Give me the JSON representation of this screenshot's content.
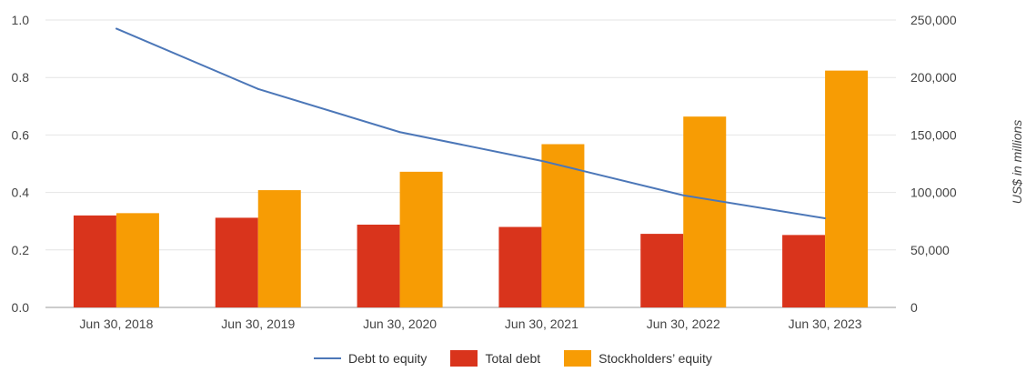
{
  "colors": {
    "line": "#4c77b8",
    "total_debt": "#d9341c",
    "equity": "#f79c04",
    "grid": "#e4e4e4",
    "axis": "#999999"
  },
  "chart_data": {
    "type": "bar",
    "categories": [
      "Jun 30, 2018",
      "Jun 30, 2019",
      "Jun 30, 2020",
      "Jun 30, 2021",
      "Jun 30, 2022",
      "Jun 30, 2023"
    ],
    "series": [
      {
        "name": "Debt to equity",
        "type": "line",
        "axis": "left",
        "values": [
          0.97,
          0.76,
          0.61,
          0.51,
          0.39,
          0.31
        ]
      },
      {
        "name": "Total debt",
        "type": "bar",
        "axis": "right",
        "values": [
          80000,
          78000,
          72000,
          70000,
          64000,
          63000
        ]
      },
      {
        "name": "Stockholders’ equity",
        "type": "bar",
        "axis": "right",
        "values": [
          82000,
          102000,
          118000,
          142000,
          166000,
          206000
        ]
      }
    ],
    "y_left": {
      "range": [
        0,
        1.0
      ],
      "ticks": [
        "0.0",
        "0.2",
        "0.4",
        "0.6",
        "0.8",
        "1.0"
      ]
    },
    "y_right": {
      "range": [
        0,
        250000
      ],
      "ticks": [
        "0",
        "50,000",
        "100,000",
        "150,000",
        "200,000",
        "250,000"
      ],
      "label": "US$ in millions"
    },
    "grid": true,
    "legend_position": "bottom"
  },
  "legend": {
    "line_label": "Debt to equity",
    "debt_label": "Total debt",
    "equity_label": "Stockholders’ equity"
  }
}
